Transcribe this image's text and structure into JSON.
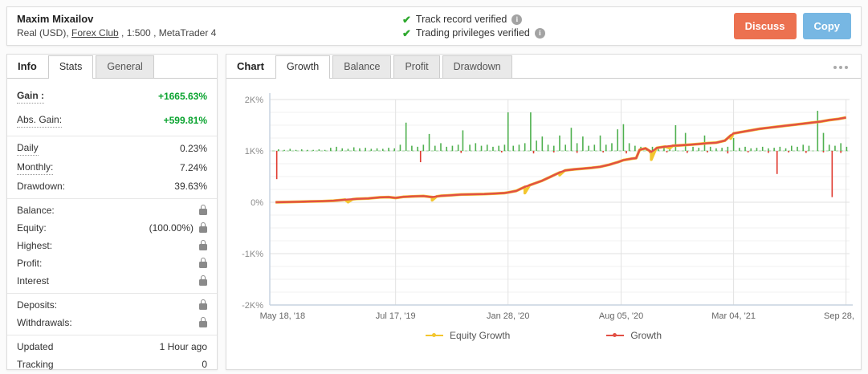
{
  "header": {
    "account_name": "Maxim Mixailov",
    "subtitle_prefix": "Real (USD), ",
    "broker": "Forex Club",
    "subtitle_suffix": " , 1:500 , MetaTrader 4",
    "verified": [
      {
        "label": "Track record verified"
      },
      {
        "label": "Trading privileges verified"
      }
    ],
    "buttons": [
      {
        "label": "Discuss",
        "color": "#ec7150",
        "name": "discuss-button"
      },
      {
        "label": "Copy",
        "color": "#77b7e3",
        "name": "copy-button"
      }
    ]
  },
  "sidebar": {
    "title": "Info",
    "tabs": [
      {
        "label": "Stats",
        "active": true
      },
      {
        "label": "General",
        "active": false
      }
    ],
    "groups": [
      {
        "roomy": true,
        "rows": [
          {
            "label": "Gain :",
            "value": "+1665.63%",
            "bold": true,
            "dotted": true,
            "green": true
          },
          {
            "label": "Abs. Gain:",
            "value": "+599.81%",
            "dotted": true,
            "green": true
          }
        ]
      },
      {
        "rows": [
          {
            "label": "Daily",
            "value": "0.23%",
            "dotted": true
          },
          {
            "label": "Monthly:",
            "value": "7.24%",
            "dotted": true
          },
          {
            "label": "Drawdown:",
            "value": "39.63%"
          }
        ]
      },
      {
        "rows": [
          {
            "label": "Balance:",
            "value": "",
            "lock": true
          },
          {
            "label": "Equity:",
            "value": "(100.00%)",
            "lock": true
          },
          {
            "label": "Highest:",
            "value": "",
            "lock": true
          },
          {
            "label": "Profit:",
            "value": "",
            "lock": true
          },
          {
            "label": "Interest",
            "value": "",
            "lock": true
          }
        ]
      },
      {
        "rows": [
          {
            "label": "Deposits:",
            "value": "",
            "lock": true
          },
          {
            "label": "Withdrawals:",
            "value": "",
            "lock": true
          }
        ]
      },
      {
        "rows": [
          {
            "label": "Updated",
            "value": "1 Hour ago"
          },
          {
            "label": "Tracking",
            "value": "0"
          }
        ]
      }
    ]
  },
  "chart_panel": {
    "title": "Chart",
    "tabs": [
      {
        "label": "Growth",
        "active": true
      },
      {
        "label": "Balance",
        "active": false
      },
      {
        "label": "Profit",
        "active": false
      },
      {
        "label": "Drawdown",
        "active": false
      }
    ]
  },
  "chart_data": {
    "type": "line",
    "title": "Growth",
    "ylabel": "Growth %",
    "ylim": [
      -2,
      2
    ],
    "y_unit": "K%",
    "y_tick_labels": [
      "2K%",
      "1K%",
      "0%",
      "-1K%",
      "-2K%"
    ],
    "y_tick_values": [
      2,
      1,
      0,
      -1,
      -2
    ],
    "x_ticks": [
      {
        "label": "May 18, '18",
        "f": 0.022
      },
      {
        "label": "Jul 17, '19",
        "f": 0.217
      },
      {
        "label": "Jan 28, '20",
        "f": 0.411
      },
      {
        "label": "Aug 05, '20",
        "f": 0.606
      },
      {
        "label": "Mar 04, '21",
        "f": 0.8
      },
      {
        "label": "Sep 28, '21",
        "f": 0.994
      }
    ],
    "baseline": {
      "value": 1,
      "color": "#9ad29a",
      "style": "dashed"
    },
    "series": [
      {
        "name": "Equity Growth",
        "color": "#f3c62f",
        "dips": [
          [
            0.135,
            0.05
          ],
          [
            0.28,
            0.06
          ],
          [
            0.44,
            0.12
          ],
          [
            0.5,
            0.05
          ],
          [
            0.658,
            0.15
          ],
          [
            0.69,
            0.04
          ],
          [
            0.795,
            0.06
          ]
        ]
      },
      {
        "name": "Growth",
        "color": "#e25045",
        "points": [
          [
            0.01,
            0.0
          ],
          [
            0.03,
            0.005
          ],
          [
            0.05,
            0.01
          ],
          [
            0.07,
            0.015
          ],
          [
            0.09,
            0.02
          ],
          [
            0.11,
            0.03
          ],
          [
            0.13,
            0.05
          ],
          [
            0.15,
            0.065
          ],
          [
            0.17,
            0.075
          ],
          [
            0.19,
            0.095
          ],
          [
            0.205,
            0.1
          ],
          [
            0.217,
            0.085
          ],
          [
            0.23,
            0.105
          ],
          [
            0.25,
            0.115
          ],
          [
            0.265,
            0.12
          ],
          [
            0.28,
            0.1
          ],
          [
            0.295,
            0.125
          ],
          [
            0.31,
            0.135
          ],
          [
            0.33,
            0.15
          ],
          [
            0.35,
            0.155
          ],
          [
            0.37,
            0.16
          ],
          [
            0.39,
            0.17
          ],
          [
            0.405,
            0.18
          ],
          [
            0.411,
            0.19
          ],
          [
            0.425,
            0.22
          ],
          [
            0.44,
            0.3
          ],
          [
            0.455,
            0.36
          ],
          [
            0.47,
            0.42
          ],
          [
            0.485,
            0.5
          ],
          [
            0.5,
            0.58
          ],
          [
            0.51,
            0.62
          ],
          [
            0.525,
            0.64
          ],
          [
            0.54,
            0.655
          ],
          [
            0.555,
            0.67
          ],
          [
            0.57,
            0.69
          ],
          [
            0.585,
            0.73
          ],
          [
            0.6,
            0.78
          ],
          [
            0.61,
            0.82
          ],
          [
            0.625,
            0.85
          ],
          [
            0.632,
            0.86
          ],
          [
            0.638,
            1.02
          ],
          [
            0.648,
            1.05
          ],
          [
            0.658,
            0.98
          ],
          [
            0.668,
            1.06
          ],
          [
            0.68,
            1.08
          ],
          [
            0.695,
            1.1
          ],
          [
            0.71,
            1.11
          ],
          [
            0.725,
            1.12
          ],
          [
            0.74,
            1.135
          ],
          [
            0.755,
            1.15
          ],
          [
            0.77,
            1.16
          ],
          [
            0.785,
            1.2
          ],
          [
            0.795,
            1.3
          ],
          [
            0.8,
            1.34
          ],
          [
            0.815,
            1.37
          ],
          [
            0.83,
            1.4
          ],
          [
            0.845,
            1.43
          ],
          [
            0.86,
            1.45
          ],
          [
            0.875,
            1.47
          ],
          [
            0.89,
            1.49
          ],
          [
            0.905,
            1.51
          ],
          [
            0.92,
            1.53
          ],
          [
            0.935,
            1.55
          ],
          [
            0.95,
            1.57
          ],
          [
            0.965,
            1.6
          ],
          [
            0.98,
            1.62
          ],
          [
            0.994,
            1.65
          ]
        ]
      }
    ],
    "green_bars": {
      "color": "#4fb04f",
      "base": 1,
      "bars": [
        [
          0.015,
          0.03
        ],
        [
          0.025,
          0.02
        ],
        [
          0.035,
          0.04
        ],
        [
          0.045,
          0.02
        ],
        [
          0.055,
          0.03
        ],
        [
          0.065,
          0.02
        ],
        [
          0.075,
          0.02
        ],
        [
          0.085,
          0.03
        ],
        [
          0.095,
          0.02
        ],
        [
          0.105,
          0.06
        ],
        [
          0.115,
          0.08
        ],
        [
          0.125,
          0.05
        ],
        [
          0.135,
          0.04
        ],
        [
          0.145,
          0.07
        ],
        [
          0.155,
          0.05
        ],
        [
          0.165,
          0.06
        ],
        [
          0.175,
          0.04
        ],
        [
          0.185,
          0.05
        ],
        [
          0.195,
          0.04
        ],
        [
          0.205,
          0.06
        ],
        [
          0.215,
          0.05
        ],
        [
          0.225,
          0.12
        ],
        [
          0.235,
          0.55
        ],
        [
          0.245,
          0.1
        ],
        [
          0.255,
          0.08
        ],
        [
          0.265,
          0.12
        ],
        [
          0.275,
          0.33
        ],
        [
          0.285,
          0.1
        ],
        [
          0.295,
          0.15
        ],
        [
          0.305,
          0.08
        ],
        [
          0.315,
          0.1
        ],
        [
          0.325,
          0.12
        ],
        [
          0.333,
          0.4
        ],
        [
          0.345,
          0.12
        ],
        [
          0.355,
          0.15
        ],
        [
          0.365,
          0.1
        ],
        [
          0.375,
          0.12
        ],
        [
          0.385,
          0.08
        ],
        [
          0.395,
          0.1
        ],
        [
          0.405,
          0.12
        ],
        [
          0.411,
          0.75
        ],
        [
          0.42,
          0.1
        ],
        [
          0.43,
          0.12
        ],
        [
          0.44,
          0.15
        ],
        [
          0.45,
          0.75
        ],
        [
          0.46,
          0.2
        ],
        [
          0.47,
          0.28
        ],
        [
          0.48,
          0.12
        ],
        [
          0.49,
          0.1
        ],
        [
          0.5,
          0.3
        ],
        [
          0.51,
          0.12
        ],
        [
          0.52,
          0.45
        ],
        [
          0.53,
          0.15
        ],
        [
          0.54,
          0.28
        ],
        [
          0.55,
          0.1
        ],
        [
          0.56,
          0.12
        ],
        [
          0.57,
          0.3
        ],
        [
          0.58,
          0.12
        ],
        [
          0.59,
          0.15
        ],
        [
          0.6,
          0.42
        ],
        [
          0.61,
          0.52
        ],
        [
          0.62,
          0.15
        ],
        [
          0.63,
          0.1
        ],
        [
          0.64,
          0.08
        ],
        [
          0.65,
          0.06
        ],
        [
          0.66,
          0.08
        ],
        [
          0.67,
          0.05
        ],
        [
          0.68,
          0.06
        ],
        [
          0.69,
          0.08
        ],
        [
          0.7,
          0.5
        ],
        [
          0.717,
          0.35
        ],
        [
          0.73,
          0.08
        ],
        [
          0.74,
          0.06
        ],
        [
          0.75,
          0.3
        ],
        [
          0.76,
          0.08
        ],
        [
          0.77,
          0.05
        ],
        [
          0.78,
          0.06
        ],
        [
          0.79,
          0.08
        ],
        [
          0.8,
          0.25
        ],
        [
          0.81,
          0.06
        ],
        [
          0.82,
          0.08
        ],
        [
          0.83,
          0.05
        ],
        [
          0.84,
          0.06
        ],
        [
          0.85,
          0.08
        ],
        [
          0.86,
          0.05
        ],
        [
          0.87,
          0.06
        ],
        [
          0.88,
          0.08
        ],
        [
          0.89,
          0.05
        ],
        [
          0.9,
          0.1
        ],
        [
          0.91,
          0.08
        ],
        [
          0.92,
          0.12
        ],
        [
          0.93,
          0.1
        ],
        [
          0.945,
          0.78
        ],
        [
          0.955,
          0.35
        ],
        [
          0.965,
          0.12
        ],
        [
          0.975,
          0.1
        ],
        [
          0.985,
          0.15
        ],
        [
          0.995,
          0.08
        ]
      ]
    },
    "red_bars": {
      "color": "#e03a2f",
      "base": 1,
      "bars": [
        [
          0.012,
          0.55
        ],
        [
          0.26,
          0.22
        ],
        [
          0.33,
          0.04
        ],
        [
          0.4,
          0.03
        ],
        [
          0.455,
          0.05
        ],
        [
          0.49,
          0.03
        ],
        [
          0.53,
          0.04
        ],
        [
          0.575,
          0.03
        ],
        [
          0.615,
          0.05
        ],
        [
          0.655,
          0.04
        ],
        [
          0.685,
          0.03
        ],
        [
          0.72,
          0.04
        ],
        [
          0.755,
          0.03
        ],
        [
          0.79,
          0.05
        ],
        [
          0.825,
          0.03
        ],
        [
          0.86,
          0.04
        ],
        [
          0.875,
          0.45
        ],
        [
          0.895,
          0.03
        ],
        [
          0.925,
          0.04
        ],
        [
          0.955,
          0.03
        ],
        [
          0.97,
          0.9
        ],
        [
          0.985,
          0.04
        ]
      ]
    },
    "legend": [
      {
        "label": "Equity Growth",
        "color": "#f3c62f"
      },
      {
        "label": "Growth",
        "color": "#e25045"
      }
    ],
    "grid": {
      "minor_step": 0.25,
      "minor_color": "#f2f2f2",
      "major_color": "#e2e2e2",
      "spine_color": "#c7d3e0"
    }
  }
}
